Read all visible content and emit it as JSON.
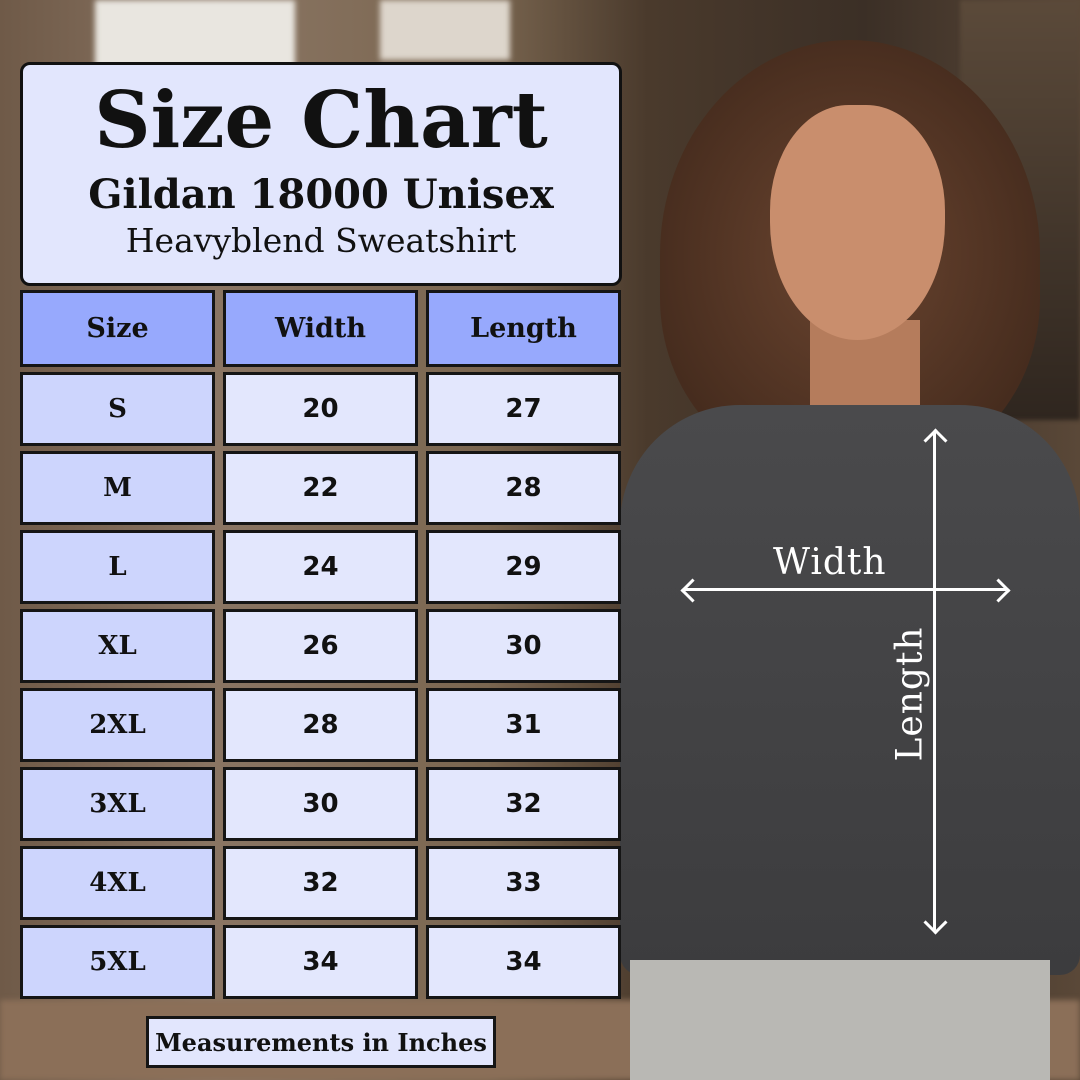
{
  "title": "Size Chart",
  "subtitle": "Gildan 18000 Unisex",
  "product": "Heavyblend Sweatshirt",
  "colors": {
    "header": "#97a9fd",
    "size_col": "#cdd5fd",
    "value_cells": "#e3e7fd",
    "border": "#151515"
  },
  "table": {
    "headers": [
      "Size",
      "Width",
      "Length"
    ],
    "rows": [
      [
        "S",
        "20",
        "27"
      ],
      [
        "M",
        "22",
        "28"
      ],
      [
        "L",
        "24",
        "29"
      ],
      [
        "XL",
        "26",
        "30"
      ],
      [
        "2XL",
        "28",
        "31"
      ],
      [
        "3XL",
        "30",
        "32"
      ],
      [
        "4XL",
        "32",
        "33"
      ],
      [
        "5XL",
        "34",
        "34"
      ]
    ]
  },
  "footer": "Measurements in Inches",
  "diagram": {
    "width_label": "Width",
    "length_label": "Length"
  }
}
